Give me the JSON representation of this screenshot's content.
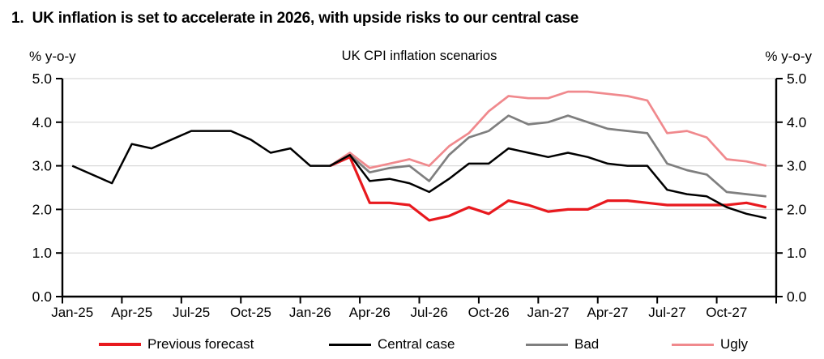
{
  "heading": "1.  UK inflation is set to accelerate in 2026, with upside risks to our central case",
  "chart_data": {
    "type": "line",
    "title": "UK CPI inflation scenarios",
    "left_axis_label": "% y-o-y",
    "right_axis_label": "% y-o-y",
    "ylim": [
      0,
      5
    ],
    "ytick_step": 1.0,
    "ytick_labels": [
      "0.0",
      "1.0",
      "2.0",
      "3.0",
      "4.0",
      "5.0"
    ],
    "grid": "horizontal",
    "legend_position": "bottom",
    "colors": {
      "grid": "#d9d9d9",
      "axis": "#000000"
    },
    "months": [
      "Jan-25",
      "Feb-25",
      "Mar-25",
      "Apr-25",
      "May-25",
      "Jun-25",
      "Jul-25",
      "Aug-25",
      "Sep-25",
      "Oct-25",
      "Nov-25",
      "Dec-25",
      "Jan-26",
      "Feb-26",
      "Mar-26",
      "Apr-26",
      "May-26",
      "Jun-26",
      "Jul-26",
      "Aug-26",
      "Sep-26",
      "Oct-26",
      "Nov-26",
      "Dec-26",
      "Jan-27",
      "Feb-27",
      "Mar-27",
      "Apr-27",
      "May-27",
      "Jun-27",
      "Jul-27",
      "Aug-27",
      "Sep-27",
      "Oct-27",
      "Nov-27",
      "Dec-27"
    ],
    "xtick_labels": [
      "Jan-25",
      "Apr-25",
      "Jul-25",
      "Oct-25",
      "Jan-26",
      "Apr-26",
      "Jul-26",
      "Oct-26",
      "Jan-27",
      "Apr-27",
      "Jul-27",
      "Oct-27"
    ],
    "series": [
      {
        "name": "Previous forecast",
        "color": "#e8191e",
        "values": [
          null,
          null,
          null,
          null,
          null,
          null,
          null,
          null,
          null,
          null,
          null,
          null,
          null,
          3.0,
          3.2,
          2.15,
          2.15,
          2.1,
          1.75,
          1.85,
          2.05,
          1.9,
          2.2,
          2.1,
          1.95,
          2.0,
          2.0,
          2.2,
          2.2,
          2.15,
          2.1,
          2.1,
          2.1,
          2.1,
          2.15,
          2.05
        ]
      },
      {
        "name": "Central case",
        "color": "#000000",
        "values": [
          3.0,
          2.8,
          2.6,
          3.5,
          3.4,
          3.6,
          3.8,
          3.8,
          3.8,
          3.6,
          3.3,
          3.4,
          3.0,
          3.0,
          3.25,
          2.65,
          2.7,
          2.6,
          2.4,
          2.7,
          3.05,
          3.05,
          3.4,
          3.3,
          3.2,
          3.3,
          3.2,
          3.05,
          3.0,
          3.0,
          2.45,
          2.35,
          2.3,
          2.05,
          1.9,
          1.8
        ]
      },
      {
        "name": "Bad",
        "color": "#7f7f7f",
        "values": [
          null,
          null,
          null,
          null,
          null,
          null,
          null,
          null,
          null,
          null,
          null,
          null,
          null,
          3.0,
          3.25,
          2.85,
          2.95,
          3.0,
          2.65,
          3.25,
          3.65,
          3.8,
          4.15,
          3.95,
          4.0,
          4.15,
          4.0,
          3.85,
          3.8,
          3.75,
          3.05,
          2.9,
          2.8,
          2.4,
          2.35,
          2.3
        ]
      },
      {
        "name": "Ugly",
        "color": "#f0898d",
        "values": [
          null,
          null,
          null,
          null,
          null,
          null,
          null,
          null,
          null,
          null,
          null,
          null,
          null,
          3.0,
          3.3,
          2.95,
          3.05,
          3.15,
          3.0,
          3.45,
          3.75,
          4.25,
          4.6,
          4.55,
          4.55,
          4.7,
          4.7,
          4.65,
          4.6,
          4.5,
          3.75,
          3.8,
          3.65,
          3.15,
          3.1,
          3.0
        ]
      }
    ]
  }
}
